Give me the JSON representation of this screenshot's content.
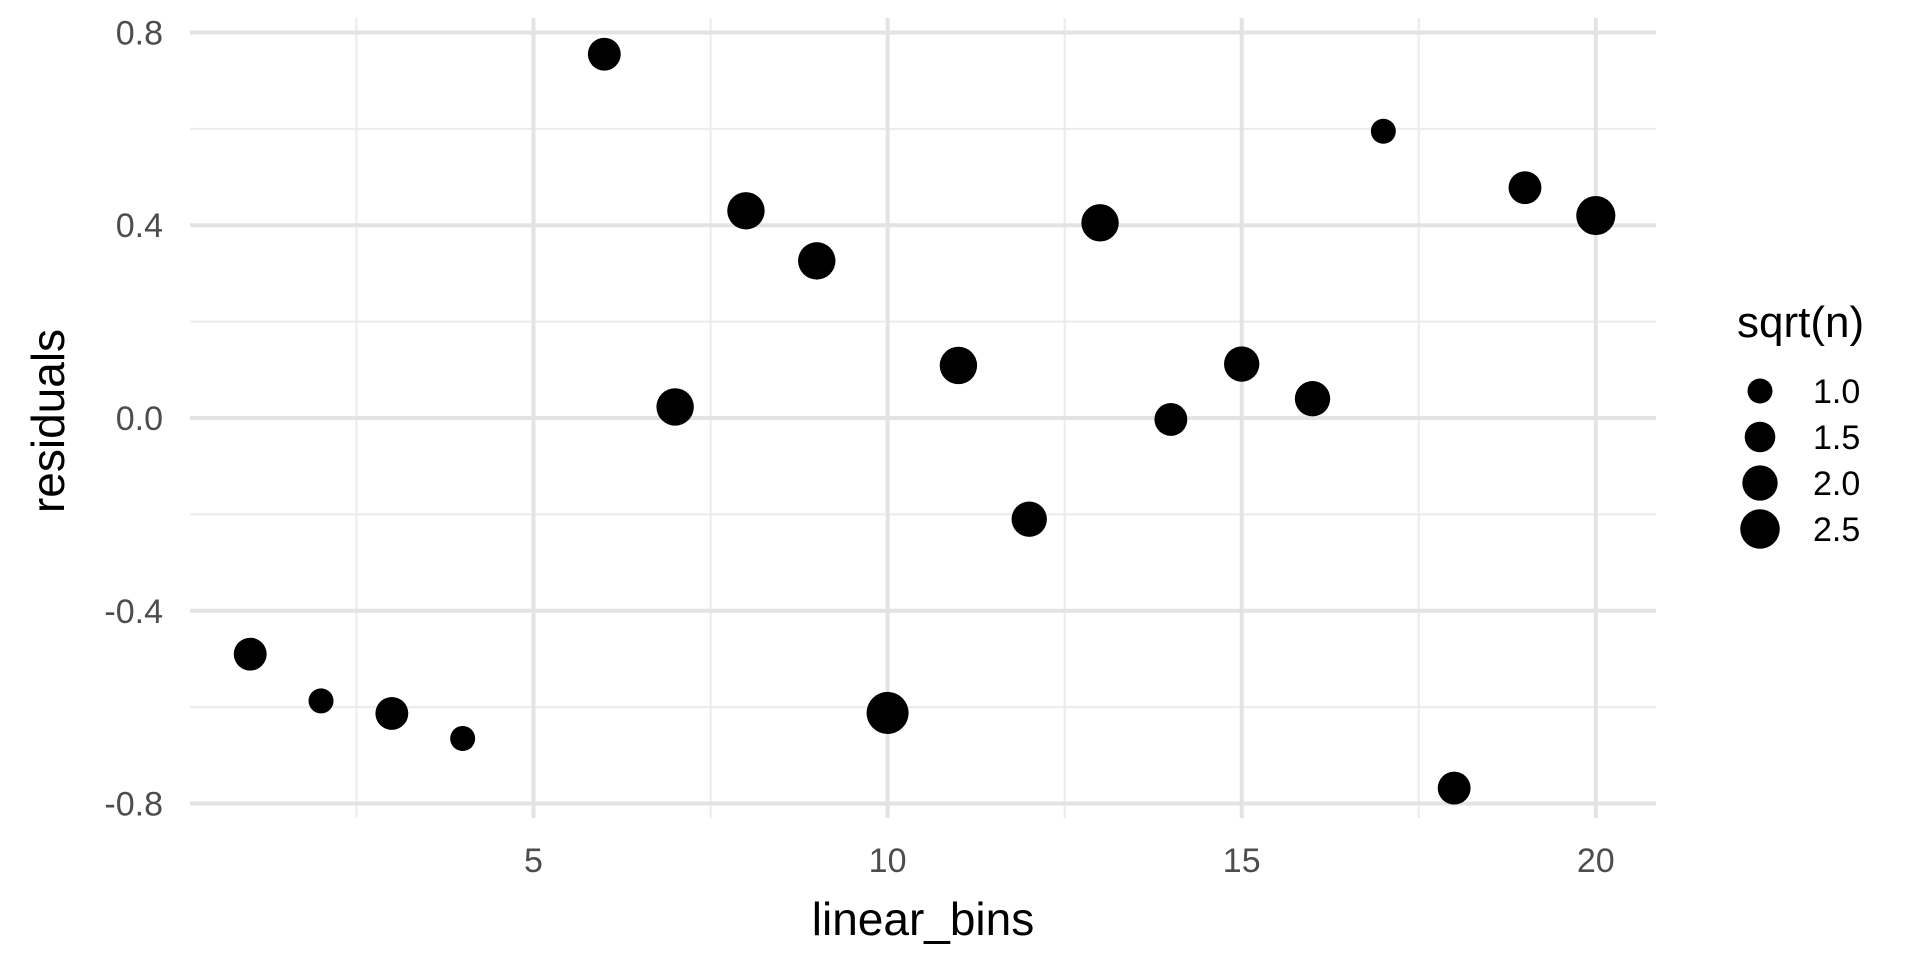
{
  "chart_data": {
    "type": "scatter",
    "xlabel": "linear_bins",
    "ylabel": "residuals",
    "xlim": [
      0.15,
      20.85
    ],
    "ylim": [
      -0.83,
      0.83
    ],
    "x_ticks": [
      5,
      10,
      15,
      20
    ],
    "x_minor_ticks": [
      2.5,
      7.5,
      12.5,
      17.5
    ],
    "y_ticks": [
      -0.8,
      -0.4,
      0.0,
      0.4,
      0.8
    ],
    "y_tick_labels": [
      "-0.8",
      "-0.4",
      "0.0",
      "0.4",
      "0.8"
    ],
    "y_minor_ticks": [
      -0.6,
      -0.2,
      0.2,
      0.6
    ],
    "grid": true,
    "point_color": "#000000",
    "size_legend": {
      "title": "sqrt(n)",
      "placement": "right",
      "values": [
        1.0,
        1.5,
        2.0,
        2.5
      ],
      "labels": [
        "1.0",
        "1.5",
        "2.0",
        "2.5"
      ]
    },
    "points": [
      {
        "x": 1,
        "y": -0.49,
        "size": 1.73
      },
      {
        "x": 2,
        "y": -0.587,
        "size": 1.0
      },
      {
        "x": 3,
        "y": -0.613,
        "size": 1.73
      },
      {
        "x": 4,
        "y": -0.665,
        "size": 1.0
      },
      {
        "x": 6,
        "y": 0.755,
        "size": 1.73
      },
      {
        "x": 7,
        "y": 0.023,
        "size": 2.24
      },
      {
        "x": 8,
        "y": 0.43,
        "size": 2.24
      },
      {
        "x": 9,
        "y": 0.326,
        "size": 2.24
      },
      {
        "x": 10,
        "y": -0.612,
        "size": 2.83
      },
      {
        "x": 11,
        "y": 0.109,
        "size": 2.24
      },
      {
        "x": 12,
        "y": -0.21,
        "size": 2.0
      },
      {
        "x": 13,
        "y": 0.405,
        "size": 2.24
      },
      {
        "x": 14,
        "y": -0.003,
        "size": 1.73
      },
      {
        "x": 15,
        "y": 0.112,
        "size": 2.0
      },
      {
        "x": 16,
        "y": 0.04,
        "size": 2.0
      },
      {
        "x": 17,
        "y": 0.595,
        "size": 1.0
      },
      {
        "x": 18,
        "y": -0.768,
        "size": 1.73
      },
      {
        "x": 19,
        "y": 0.478,
        "size": 1.73
      },
      {
        "x": 20,
        "y": 0.42,
        "size": 2.45
      }
    ]
  }
}
